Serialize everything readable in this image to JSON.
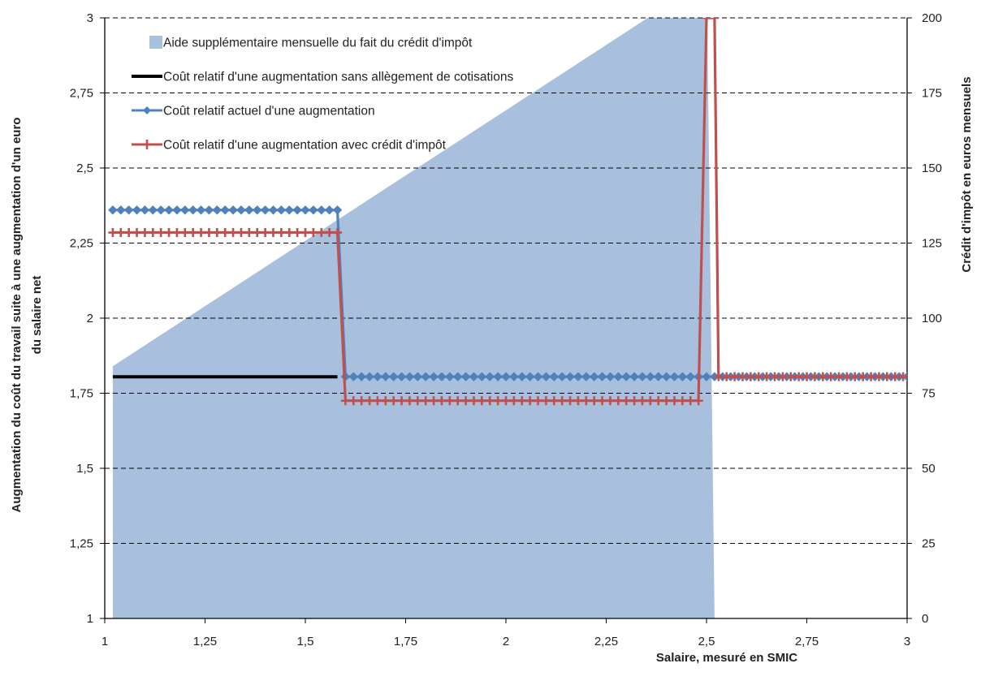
{
  "chart_data": {
    "type": "line",
    "x_axis": {
      "label": "Salaire, mesuré en SMIC",
      "min": 1,
      "max": 3,
      "ticks": [
        "1",
        "1,25",
        "1,5",
        "1,75",
        "2",
        "2,25",
        "2,5",
        "2,75",
        "3"
      ]
    },
    "y_axis_left": {
      "label_line1": "Augmentation du coût du travail suite à une augmentation d'un euro",
      "label_line2": "du salaire net",
      "min": 1,
      "max": 3,
      "ticks": [
        "1",
        "1,25",
        "1,5",
        "1,75",
        "2",
        "2,25",
        "2,5",
        "2,75",
        "3"
      ]
    },
    "y_axis_right": {
      "label": "Crédit d'impôt en euros mensuels",
      "min": 0,
      "max": 200,
      "ticks": [
        "0",
        "25",
        "50",
        "75",
        "100",
        "125",
        "150",
        "175",
        "200"
      ]
    },
    "grid": "horizontal dashed",
    "legend_position": "top-left",
    "series": [
      {
        "name": "Aide supplémentaire mensuelle du fait du crédit d'impôt",
        "kind": "area",
        "axis": "right",
        "color": "#a8c0de",
        "points": [
          [
            1.02,
            0
          ],
          [
            1.02,
            84
          ],
          [
            2.48,
            211
          ],
          [
            2.5,
            220
          ],
          [
            2.52,
            0
          ]
        ]
      },
      {
        "name": "Coût relatif d'une augmentation sans allègement de cotisations",
        "kind": "line",
        "axis": "left",
        "color": "#000000",
        "marker": "none",
        "points": [
          [
            1.02,
            1.805
          ],
          [
            1.58,
            1.805
          ]
        ]
      },
      {
        "name": "Coût relatif actuel d'une augmentation",
        "kind": "line",
        "axis": "left",
        "color": "#4f81bd",
        "marker": "diamond",
        "segments": [
          {
            "x_from": 1.02,
            "x_to": 1.58,
            "y": 2.36
          },
          {
            "x_from": 1.6,
            "x_to": 3.0,
            "y": 1.805
          }
        ]
      },
      {
        "name": "Coût relatif d'une augmentation avec crédit d'impôt",
        "kind": "line",
        "axis": "left",
        "color": "#c0504d",
        "marker": "plus",
        "segments": [
          {
            "x_from": 1.02,
            "x_to": 1.58,
            "y": 2.285
          },
          {
            "x_from": 1.6,
            "x_to": 2.48,
            "y": 1.725
          },
          {
            "x_from": 2.5,
            "x_to": 2.52,
            "y": 3.0
          },
          {
            "x_from": 2.53,
            "x_to": 3.0,
            "y": 1.805
          }
        ]
      }
    ]
  }
}
